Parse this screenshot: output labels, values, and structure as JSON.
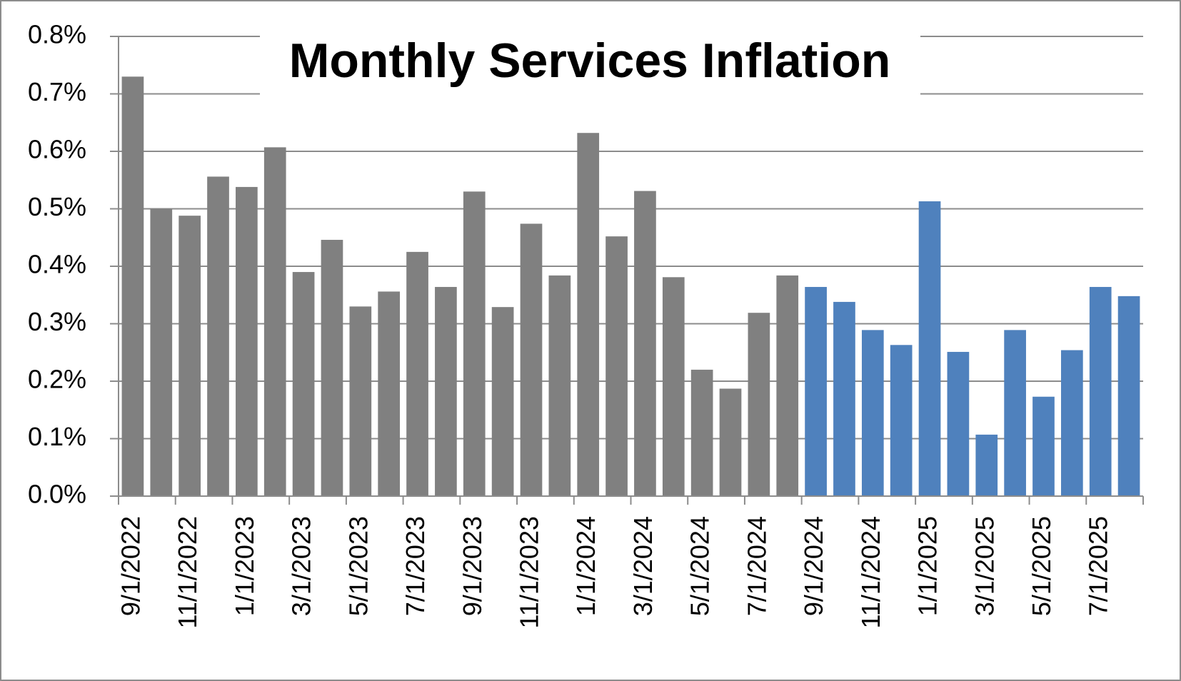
{
  "chart_data": {
    "type": "bar",
    "title": "Monthly Services Inflation",
    "categories": [
      "9/1/2022",
      null,
      "11/1/2022",
      null,
      "1/1/2023",
      null,
      "3/1/2023",
      null,
      "5/1/2023",
      null,
      "7/1/2023",
      null,
      "9/1/2023",
      null,
      "11/1/2023",
      null,
      "1/1/2024",
      null,
      "3/1/2024",
      null,
      "5/1/2024",
      null,
      "7/1/2024",
      null,
      "9/1/2024",
      null,
      "11/1/2024",
      null,
      "1/1/2025",
      null,
      "3/1/2025",
      null,
      "5/1/2025",
      null,
      "7/1/2025",
      null
    ],
    "values": [
      0.73,
      0.5,
      0.488,
      0.556,
      0.538,
      0.607,
      0.39,
      0.446,
      0.33,
      0.356,
      0.425,
      0.364,
      0.53,
      0.329,
      0.474,
      0.384,
      0.632,
      0.452,
      0.531,
      0.381,
      0.22,
      0.187,
      0.319,
      0.384,
      0.364,
      0.338,
      0.289,
      0.263,
      0.513,
      0.251,
      0.107,
      0.289,
      0.173,
      0.254,
      0.364,
      0.348
    ],
    "colors": [
      "#808080",
      "#808080",
      "#808080",
      "#808080",
      "#808080",
      "#808080",
      "#808080",
      "#808080",
      "#808080",
      "#808080",
      "#808080",
      "#808080",
      "#808080",
      "#808080",
      "#808080",
      "#808080",
      "#808080",
      "#808080",
      "#808080",
      "#808080",
      "#808080",
      "#808080",
      "#808080",
      "#808080",
      "#4f81bd",
      "#4f81bd",
      "#4f81bd",
      "#4f81bd",
      "#4f81bd",
      "#4f81bd",
      "#4f81bd",
      "#4f81bd",
      "#4f81bd",
      "#4f81bd",
      "#4f81bd",
      "#4f81bd"
    ],
    "ylim": [
      0,
      0.8
    ],
    "yticks": [
      {
        "value": 0,
        "label": "0.0%"
      },
      {
        "value": 0.1,
        "label": "0.1%"
      },
      {
        "value": 0.2,
        "label": "0.2%"
      },
      {
        "value": 0.3,
        "label": "0.3%"
      },
      {
        "value": 0.4,
        "label": "0.4%"
      },
      {
        "value": 0.5,
        "label": "0.5%"
      },
      {
        "value": 0.6,
        "label": "0.6%"
      },
      {
        "value": 0.7,
        "label": "0.7%"
      },
      {
        "value": 0.8,
        "label": "0.8%"
      }
    ],
    "grid": true
  }
}
